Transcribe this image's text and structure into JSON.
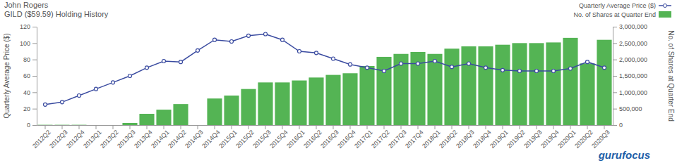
{
  "chart_data": {
    "type": "bar",
    "title": "John Rogers",
    "subtitle": "GILD ($59.59)  Holding History",
    "y_label": "Quarterly Average Price ($)",
    "y2_label": "No. of Shares at Quarter End",
    "annotations": [
      "gurufocus"
    ],
    "legend": "top-right",
    "grid": false,
    "categories": [
      "2012Q2",
      "2012Q3",
      "2012Q4",
      "2013Q1",
      "2013Q2",
      "2013Q3",
      "2013Q4",
      "2014Q1",
      "2014Q2",
      "2014Q3",
      "2014Q4",
      "2015Q1",
      "2015Q2",
      "2015Q3",
      "2015Q4",
      "2016Q1",
      "2016Q2",
      "2016Q3",
      "2016Q4",
      "2017Q1",
      "2017Q2",
      "2017Q3",
      "2017Q4",
      "2018Q1",
      "2018Q2",
      "2018Q3",
      "2018Q4",
      "2019Q1",
      "2019Q2",
      "2019Q3",
      "2019Q4",
      "2020Q1",
      "2020Q2",
      "2020Q3"
    ],
    "ylim": [
      0,
      120
    ],
    "yticks": [
      0,
      20,
      40,
      60,
      80,
      100,
      120
    ],
    "y2lim": [
      0,
      3000000
    ],
    "y2ticks": [
      0,
      {
        "value": 500000,
        "label": "500,000"
      },
      {
        "value": 1000000,
        "label": "1,000,000"
      },
      {
        "value": 1500000,
        "label": "1,500,000"
      },
      {
        "value": 2000000,
        "label": "2,000,000"
      },
      {
        "value": 2500000,
        "label": "2,500,000"
      },
      {
        "value": 3000000,
        "label": "3,000,000"
      }
    ],
    "series": [
      {
        "name": "Quarterly Average Price ($)",
        "type": "line",
        "marker": "circle",
        "color": "#3a4ba0",
        "values": [
          25,
          28,
          36,
          44,
          52,
          60,
          70,
          78,
          77,
          91,
          104,
          102,
          109,
          111,
          104,
          90,
          88,
          81,
          74,
          70,
          66,
          75,
          75,
          78,
          71,
          75,
          70,
          67,
          66,
          66,
          66,
          69,
          77,
          70
        ]
      },
      {
        "name": "No. of Shares at Quarter End",
        "type": "bar",
        "axis": "y2",
        "color": "#54b454",
        "values": [
          8000,
          8000,
          8000,
          0,
          0,
          64000,
          343000,
          470000,
          640000,
          0,
          810000,
          900000,
          1100000,
          1300000,
          1300000,
          1360000,
          1450000,
          1530000,
          1580000,
          1800000,
          2080000,
          2170000,
          2230000,
          2170000,
          2330000,
          2400000,
          2400000,
          2450000,
          2500000,
          2500000,
          2520000,
          2660000,
          1880000,
          2600000
        ]
      }
    ]
  }
}
